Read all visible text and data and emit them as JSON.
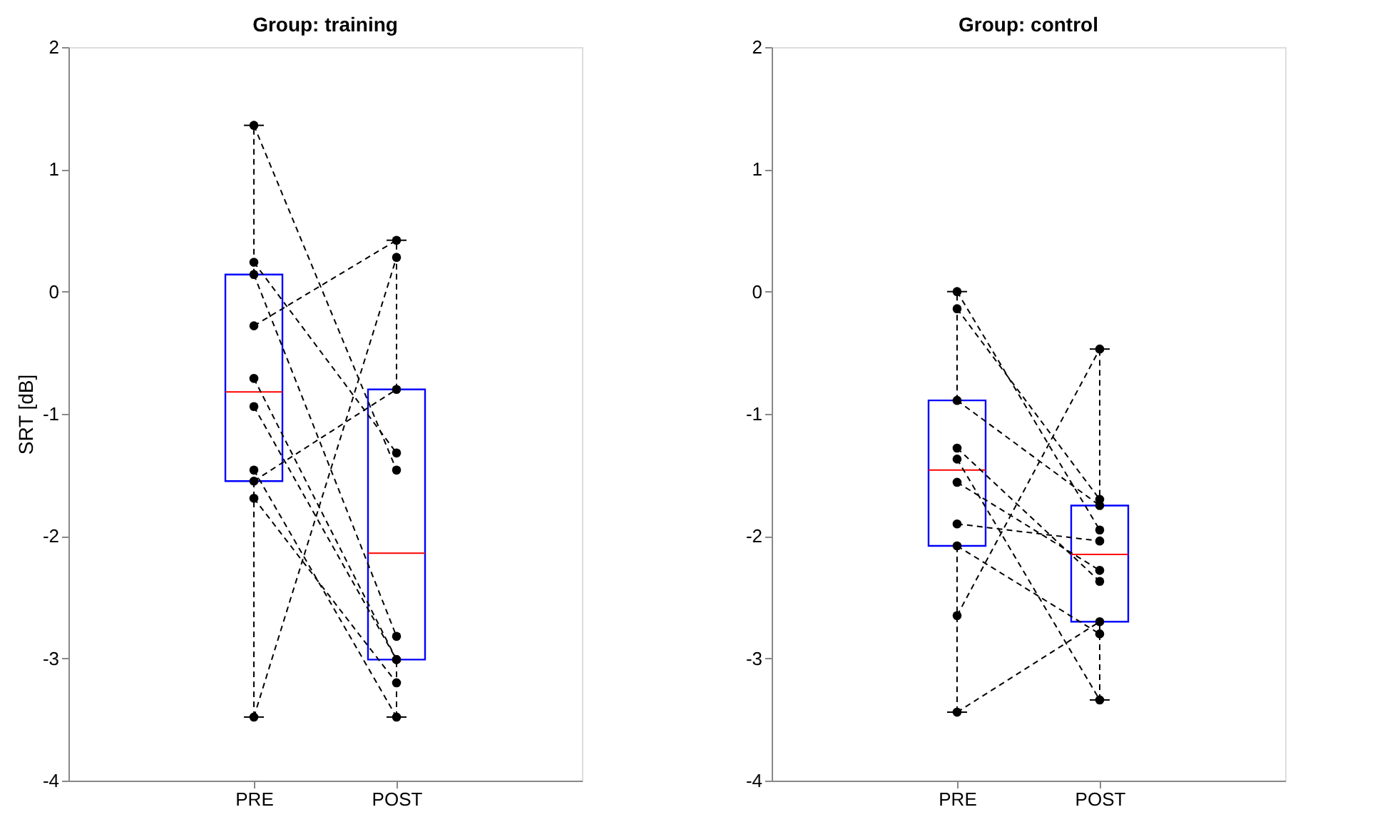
{
  "chart_data": [
    {
      "type": "box",
      "title": "Group: training",
      "ylabel": "SRT [dB]",
      "categories": [
        "PRE",
        "POST"
      ],
      "ylim": [
        -4,
        2
      ],
      "yticks": [
        -4,
        -3,
        -2,
        -1,
        0,
        1,
        2
      ],
      "grid": false,
      "series": [
        {
          "type": "box",
          "color": "#0000ff",
          "boxes": [
            {
              "low": -3.48,
              "q1": -1.55,
              "median": -0.82,
              "q3": 0.14,
              "high": 1.36
            },
            {
              "low": -3.48,
              "q1": -3.01,
              "median": -2.14,
              "q3": -0.8,
              "high": 0.42
            }
          ]
        },
        {
          "type": "line",
          "color": "#000000",
          "line_style": "dashed",
          "marker": "circle",
          "values": [
            1.36,
            -1.46
          ]
        },
        {
          "type": "line",
          "color": "#000000",
          "line_style": "dashed",
          "marker": "circle",
          "values": [
            0.24,
            -1.32
          ]
        },
        {
          "type": "line",
          "color": "#000000",
          "line_style": "dashed",
          "marker": "circle",
          "values": [
            0.14,
            -2.82
          ]
        },
        {
          "type": "line",
          "color": "#000000",
          "line_style": "dashed",
          "marker": "circle",
          "values": [
            -0.28,
            0.42
          ]
        },
        {
          "type": "line",
          "color": "#000000",
          "line_style": "dashed",
          "marker": "circle",
          "values": [
            -0.71,
            -3.01
          ]
        },
        {
          "type": "line",
          "color": "#000000",
          "line_style": "dashed",
          "marker": "circle",
          "values": [
            -0.94,
            -3.01
          ]
        },
        {
          "type": "line",
          "color": "#000000",
          "line_style": "dashed",
          "marker": "circle",
          "values": [
            -1.46,
            -3.48
          ]
        },
        {
          "type": "line",
          "color": "#000000",
          "line_style": "dashed",
          "marker": "circle",
          "values": [
            -1.55,
            -0.8
          ]
        },
        {
          "type": "line",
          "color": "#000000",
          "line_style": "dashed",
          "marker": "circle",
          "values": [
            -1.69,
            -3.2
          ]
        },
        {
          "type": "line",
          "color": "#000000",
          "line_style": "dashed",
          "marker": "circle",
          "values": [
            -3.48,
            0.28
          ]
        }
      ]
    },
    {
      "type": "box",
      "title": "Group: control",
      "categories": [
        "PRE",
        "POST"
      ],
      "ylim": [
        -4,
        2
      ],
      "yticks": [
        -4,
        -3,
        -2,
        -1,
        0,
        1,
        2
      ],
      "grid": false,
      "series": [
        {
          "type": "box",
          "color": "#0000ff",
          "boxes": [
            {
              "low": -3.44,
              "q1": -2.08,
              "median": -1.46,
              "q3": -0.89,
              "high": 0.0
            },
            {
              "low": -3.34,
              "q1": -2.7,
              "median": -2.15,
              "q3": -1.75,
              "high": -0.47
            }
          ]
        },
        {
          "type": "line",
          "color": "#000000",
          "line_style": "dashed",
          "marker": "circle",
          "values": [
            0.0,
            -1.95
          ]
        },
        {
          "type": "line",
          "color": "#000000",
          "line_style": "dashed",
          "marker": "circle",
          "values": [
            -0.14,
            -1.7
          ]
        },
        {
          "type": "line",
          "color": "#000000",
          "line_style": "dashed",
          "marker": "circle",
          "values": [
            -0.89,
            -1.75
          ]
        },
        {
          "type": "line",
          "color": "#000000",
          "line_style": "dashed",
          "marker": "circle",
          "values": [
            -1.28,
            -2.37
          ]
        },
        {
          "type": "line",
          "color": "#000000",
          "line_style": "dashed",
          "marker": "circle",
          "values": [
            -1.37,
            -3.34
          ]
        },
        {
          "type": "line",
          "color": "#000000",
          "line_style": "dashed",
          "marker": "circle",
          "values": [
            -1.56,
            -2.28
          ]
        },
        {
          "type": "line",
          "color": "#000000",
          "line_style": "dashed",
          "marker": "circle",
          "values": [
            -1.9,
            -2.04
          ]
        },
        {
          "type": "line",
          "color": "#000000",
          "line_style": "dashed",
          "marker": "circle",
          "values": [
            -2.08,
            -2.8
          ]
        },
        {
          "type": "line",
          "color": "#000000",
          "line_style": "dashed",
          "marker": "circle",
          "values": [
            -2.65,
            -0.47
          ]
        },
        {
          "type": "line",
          "color": "#000000",
          "line_style": "dashed",
          "marker": "circle",
          "values": [
            -3.44,
            -2.7
          ]
        }
      ]
    }
  ]
}
